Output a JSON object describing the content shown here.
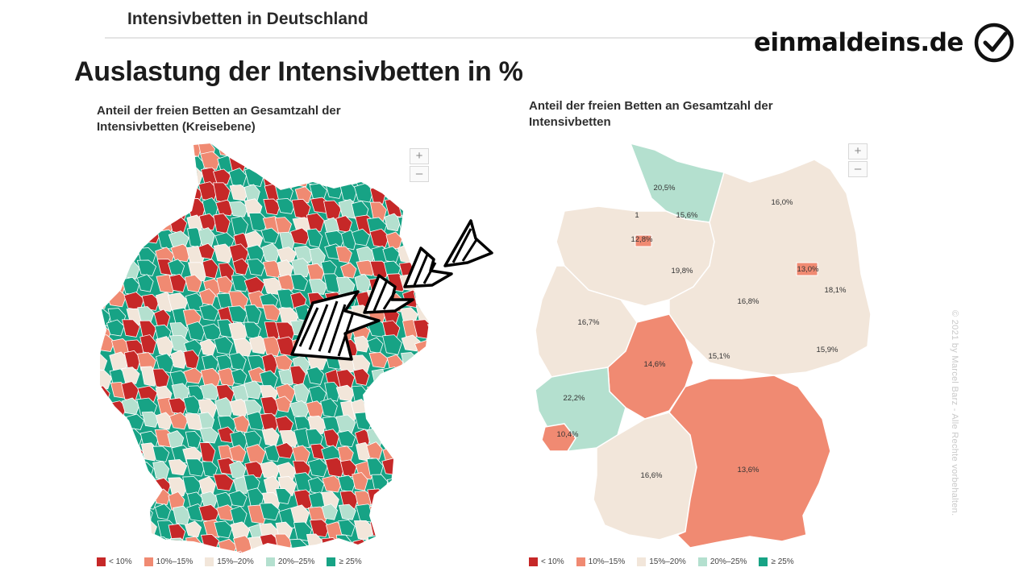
{
  "header": {
    "title": "Intensivbetten in Deutschland"
  },
  "brand": {
    "name": "einmaldeins.de",
    "icon": "checkmark-circle-icon"
  },
  "main_title": "Auslastung der Intensivbetten in %",
  "maps": {
    "left": {
      "subtitle_line1": "Anteil der freien Betten an Gesamtzahl der",
      "subtitle_line2": "Intensivbetten (Kreisebene)"
    },
    "right": {
      "subtitle_line1": "Anteil der freien Betten an Gesamtzahl der",
      "subtitle_line2": "Intensivbetten",
      "state_values": [
        "20,5%",
        "15,6%",
        "16,0%",
        "1",
        "12,8%",
        "19,8%",
        "13,0%",
        "18,1%",
        "16,8%",
        "16,7%",
        "15,1%",
        "15,9%",
        "14,6%",
        "22,2%",
        "10,4%",
        "16,6%",
        "13,6%"
      ]
    }
  },
  "zoom": {
    "plus": "+",
    "minus": "–"
  },
  "legend": [
    {
      "label": "< 10%",
      "color": "#c62828"
    },
    {
      "label": "10%–15%",
      "color": "#f08a72"
    },
    {
      "label": "15%–20%",
      "color": "#f2e6da"
    },
    {
      "label": "20%–25%",
      "color": "#b4e0cf"
    },
    {
      "label": "≥ 25%",
      "color": "#17a385"
    }
  ],
  "copyright": "© 2021 by Marcel Barz - Alle Rechte vorbehalten.",
  "colors": {
    "accent": "#17a385",
    "danger": "#c62828"
  }
}
